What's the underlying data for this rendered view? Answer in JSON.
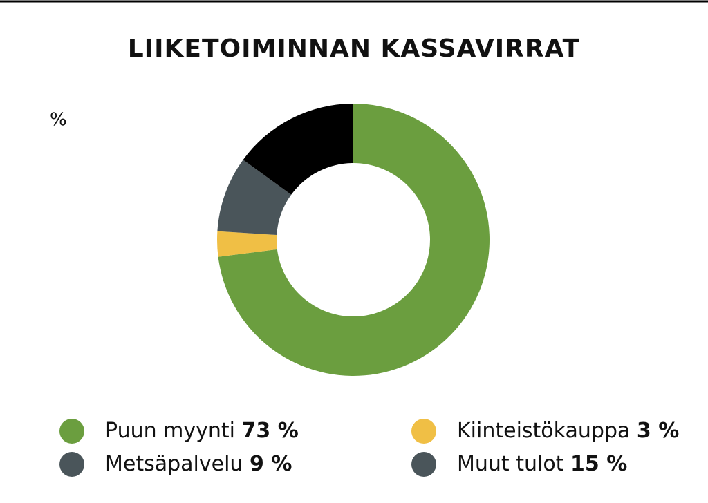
{
  "chart_data": {
    "type": "donut",
    "title": "LIIKETOIMINNAN KASSAVIRRAT",
    "unit_label": "%",
    "categories": [
      "Puun myynti",
      "Kiinteistökauppa",
      "Metsäpalvelu",
      "Muut tulot"
    ],
    "values": [
      73,
      3,
      9,
      15
    ],
    "value_labels": [
      "73 %",
      "3 %",
      "9 %",
      "15 %"
    ],
    "colors": [
      "#6b9e3f",
      "#f0bf45",
      "#4a555a",
      "#000000"
    ],
    "legend_colors": [
      "#6b9e3f",
      "#f0bf45",
      "#4a555a",
      "#4a555a"
    ]
  }
}
